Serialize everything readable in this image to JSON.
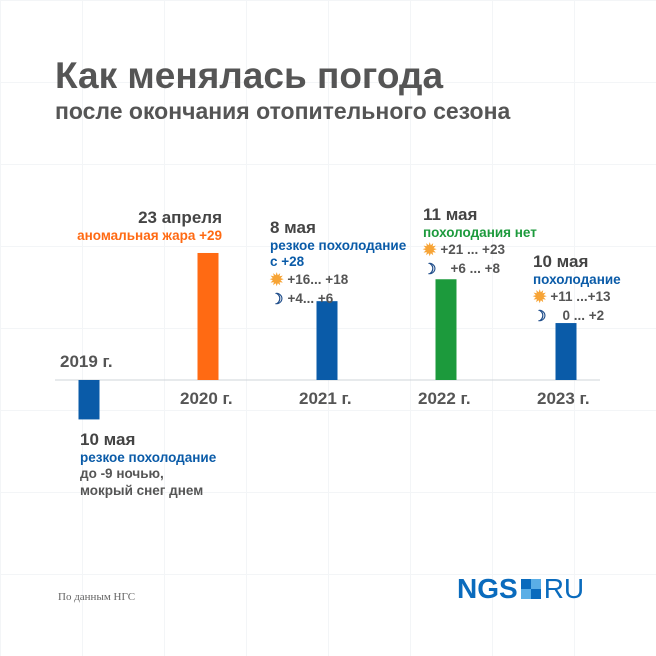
{
  "title": "Как менялась погода",
  "subtitle": "после окончания отопительного сезона",
  "chart_data": {
    "type": "bar",
    "categories": [
      "2019 г.",
      "2020 г.",
      "2021 г.",
      "2022 г.",
      "2023 г."
    ],
    "values": [
      -9,
      29,
      18,
      23,
      13
    ],
    "colors": [
      "#0a5ba8",
      "#ff6a13",
      "#0a5ba8",
      "#1c9a3c",
      "#0a5ba8"
    ],
    "annotations": [
      {
        "date": "10 мая",
        "headline": "резкое похолодание",
        "lines": [
          "до -9 ночью,",
          "мокрый снег днем"
        ]
      },
      {
        "date": "23 апреля",
        "headline": "аномальная жара +29"
      },
      {
        "date": "8 мая",
        "headline": "резкое похолодание с +28",
        "day": "+16... +18",
        "night": "+4... +6"
      },
      {
        "date": "11 мая",
        "headline": "похолодания нет",
        "day": "+21 ... +23",
        "night": "+6 ... +8"
      },
      {
        "date": "10 мая",
        "headline": "похолодание",
        "day": "+11 ...+13",
        "night": "0 ... +2"
      }
    ]
  },
  "source": "По данным НГС",
  "logo": {
    "left": "NGS",
    "right": "RU"
  }
}
